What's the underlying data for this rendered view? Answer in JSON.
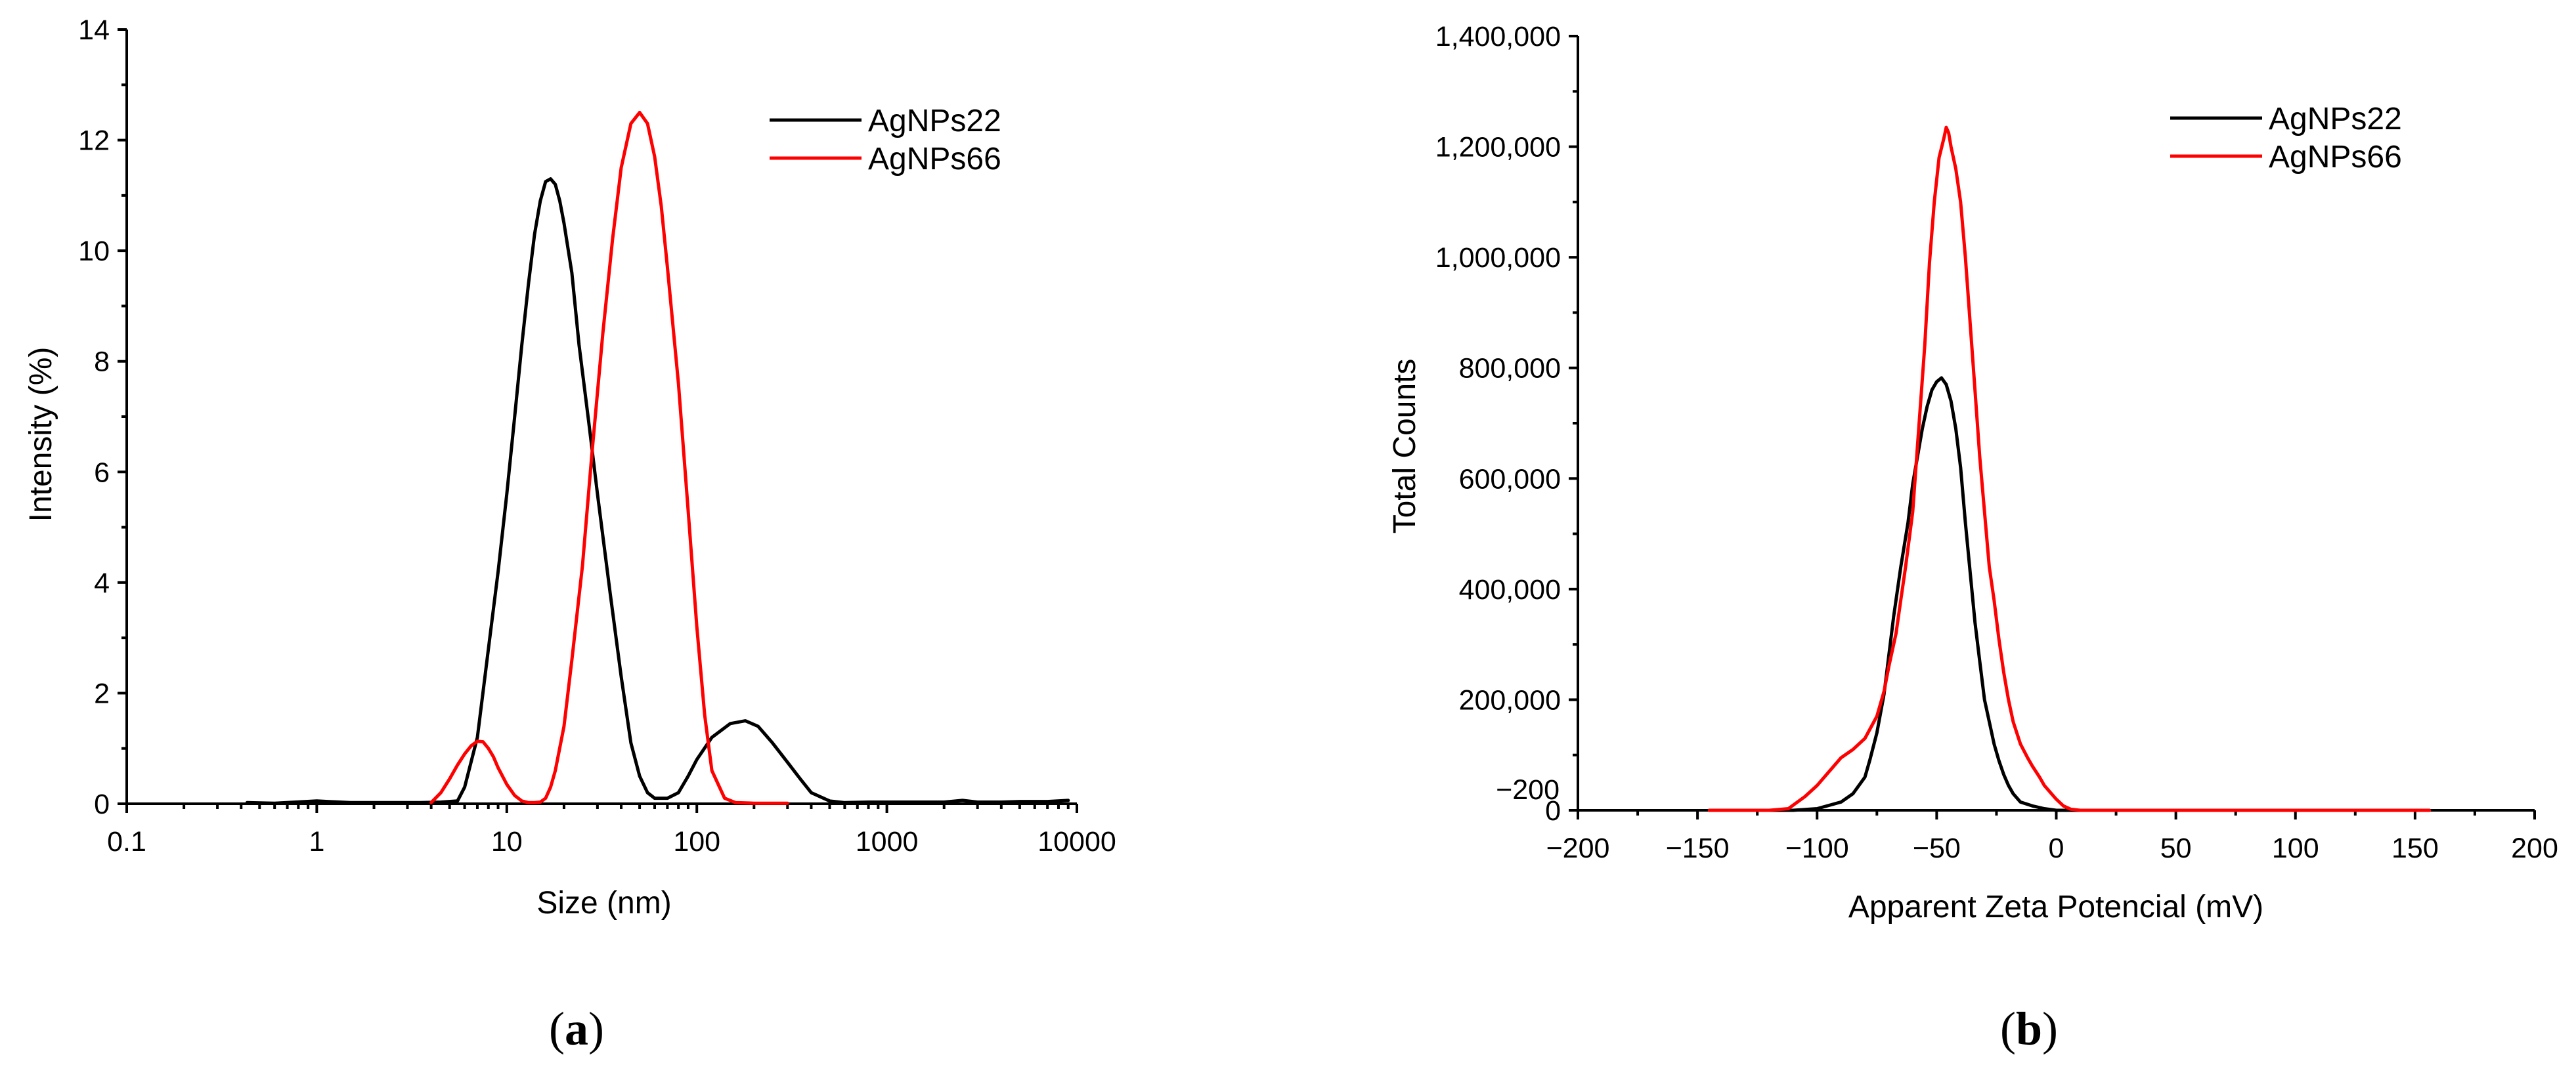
{
  "chart_data": [
    {
      "type": "line",
      "panel_label": "a",
      "xlabel": "Size (nm)",
      "ylabel": "Intensity (%)",
      "xscale": "log",
      "xlim": [
        0.1,
        10000
      ],
      "ylim": [
        0,
        14
      ],
      "x_ticks": [
        0.1,
        1,
        10,
        100,
        1000,
        10000
      ],
      "x_tick_labels": [
        "0.1",
        "1",
        "10",
        "100",
        "1000",
        "10000"
      ],
      "y_ticks": [
        0,
        2,
        4,
        6,
        8,
        10,
        12,
        14
      ],
      "y_tick_labels": [
        "0",
        "2",
        "4",
        "6",
        "8",
        "10",
        "12",
        "14"
      ],
      "grid": false,
      "legend": "top-right",
      "series": [
        {
          "name": "AgNPs22",
          "color": "#000000",
          "x": [
            0.43,
            0.6,
            1.0,
            1.5,
            2.5,
            3.5,
            4.5,
            5.5,
            6.0,
            7.0,
            8.0,
            9.0,
            10.0,
            11.0,
            12.0,
            13.0,
            14.0,
            15.0,
            16.0,
            17.0,
            18.0,
            19.0,
            20.0,
            22.0,
            24.0,
            27.0,
            30.0,
            35.0,
            40.0,
            45.0,
            50.0,
            55.0,
            60.0,
            70.0,
            80.0,
            90.0,
            100,
            120,
            150,
            180,
            210,
            250,
            300,
            350,
            400,
            500,
            600,
            800,
            1000,
            1500,
            2000,
            2500,
            3000,
            4000,
            5000,
            7000,
            9000
          ],
          "y": [
            0.02,
            0.01,
            0.05,
            0.02,
            0.02,
            0.02,
            0.03,
            0.05,
            0.3,
            1.2,
            2.8,
            4.2,
            5.6,
            7.0,
            8.3,
            9.4,
            10.3,
            10.9,
            11.25,
            11.3,
            11.2,
            10.9,
            10.5,
            9.6,
            8.3,
            6.9,
            5.6,
            3.8,
            2.3,
            1.1,
            0.5,
            0.2,
            0.1,
            0.1,
            0.2,
            0.5,
            0.8,
            1.2,
            1.45,
            1.5,
            1.4,
            1.1,
            0.75,
            0.45,
            0.2,
            0.05,
            0.02,
            0.03,
            0.03,
            0.03,
            0.03,
            0.06,
            0.03,
            0.03,
            0.04,
            0.04,
            0.06
          ]
        },
        {
          "name": "AgNPs66",
          "color": "#ff0000",
          "x": [
            4.0,
            4.5,
            5.0,
            5.5,
            6.0,
            6.5,
            7.0,
            7.5,
            8.0,
            8.5,
            9.0,
            10.0,
            11.0,
            12.0,
            13.0,
            14.0,
            15.0,
            16.0,
            17.0,
            18.0,
            20.0,
            22.0,
            25.0,
            28.0,
            32.0,
            36.0,
            40.0,
            45.0,
            50.0,
            55.0,
            60.0,
            65.0,
            70.0,
            80.0,
            90.0,
            100,
            110,
            120,
            140,
            160,
            200,
            250,
            300
          ],
          "y": [
            0.02,
            0.2,
            0.45,
            0.7,
            0.9,
            1.05,
            1.13,
            1.12,
            1.0,
            0.85,
            0.65,
            0.35,
            0.15,
            0.05,
            0.02,
            0.02,
            0.03,
            0.1,
            0.3,
            0.6,
            1.4,
            2.6,
            4.3,
            6.3,
            8.5,
            10.2,
            11.5,
            12.3,
            12.5,
            12.3,
            11.7,
            10.8,
            9.7,
            7.6,
            5.3,
            3.2,
            1.6,
            0.6,
            0.1,
            0.02,
            0.01,
            0.01,
            0.01
          ]
        }
      ]
    },
    {
      "type": "line",
      "panel_label": "b",
      "xlabel": "Apparent Zeta Potencial (mV)",
      "ylabel": "Total Counts",
      "xlim": [
        -200,
        200
      ],
      "ylim": [
        0,
        1400000
      ],
      "x_ticks": [
        -200,
        -150,
        -100,
        -50,
        0,
        50,
        100,
        150,
        200
      ],
      "x_tick_labels": [
        "−200",
        "−150",
        "−100",
        "−50",
        "0",
        "50",
        "100",
        "150",
        "200"
      ],
      "y_ticks": [
        0,
        200000,
        400000,
        600000,
        800000,
        1000000,
        1200000,
        1400000
      ],
      "y_tick_labels": [
        "0",
        "200,000",
        "400,000",
        "600,000",
        "800,000",
        "1,000,000",
        "1,200,000",
        "1,400,000"
      ],
      "extra_label": "−200",
      "grid": false,
      "legend": "top-right",
      "series": [
        {
          "name": "AgNPs22",
          "color": "#000000",
          "x": [
            -145,
            -130,
            -110,
            -100,
            -90,
            -85,
            -80,
            -78,
            -75,
            -72,
            -70,
            -68,
            -65,
            -62,
            -60,
            -58,
            -56,
            -54,
            -52,
            -50,
            -48,
            -46,
            -44,
            -42,
            -40,
            -38,
            -36,
            -34,
            -32,
            -30,
            -28,
            -26,
            -24,
            -22,
            -20,
            -18,
            -15,
            -10,
            -5,
            0,
            10,
            30,
            60,
            100,
            156
          ],
          "y": [
            0,
            0,
            0,
            3000,
            15000,
            30000,
            60000,
            90000,
            140000,
            210000,
            280000,
            350000,
            440000,
            520000,
            590000,
            640000,
            690000,
            730000,
            760000,
            775000,
            782000,
            770000,
            740000,
            690000,
            620000,
            520000,
            430000,
            340000,
            270000,
            200000,
            160000,
            120000,
            90000,
            65000,
            45000,
            30000,
            15000,
            8000,
            3000,
            0,
            0,
            0,
            0,
            0,
            0
          ]
        },
        {
          "name": "AgNPs66",
          "color": "#ff0000",
          "x": [
            -145,
            -130,
            -120,
            -112,
            -105,
            -100,
            -95,
            -90,
            -85,
            -80,
            -75,
            -72,
            -70,
            -67,
            -65,
            -63,
            -60,
            -58,
            -55,
            -53,
            -51,
            -49,
            -47,
            -46,
            -45,
            -44,
            -42,
            -40,
            -38,
            -36,
            -34,
            -32,
            -30,
            -28,
            -26,
            -24,
            -22,
            -20,
            -18,
            -15,
            -12,
            -10,
            -7,
            -5,
            -2,
            0,
            3,
            6,
            10,
            30,
            60,
            100,
            156
          ],
          "y": [
            0,
            0,
            0,
            3000,
            25000,
            45000,
            70000,
            95000,
            110000,
            130000,
            170000,
            215000,
            260000,
            320000,
            380000,
            440000,
            540000,
            660000,
            840000,
            990000,
            1100000,
            1180000,
            1215000,
            1235000,
            1225000,
            1200000,
            1160000,
            1100000,
            1000000,
            880000,
            760000,
            640000,
            540000,
            440000,
            380000,
            310000,
            250000,
            200000,
            160000,
            120000,
            95000,
            80000,
            60000,
            45000,
            30000,
            20000,
            8000,
            2000,
            0,
            0,
            0,
            0,
            0
          ]
        }
      ]
    }
  ]
}
